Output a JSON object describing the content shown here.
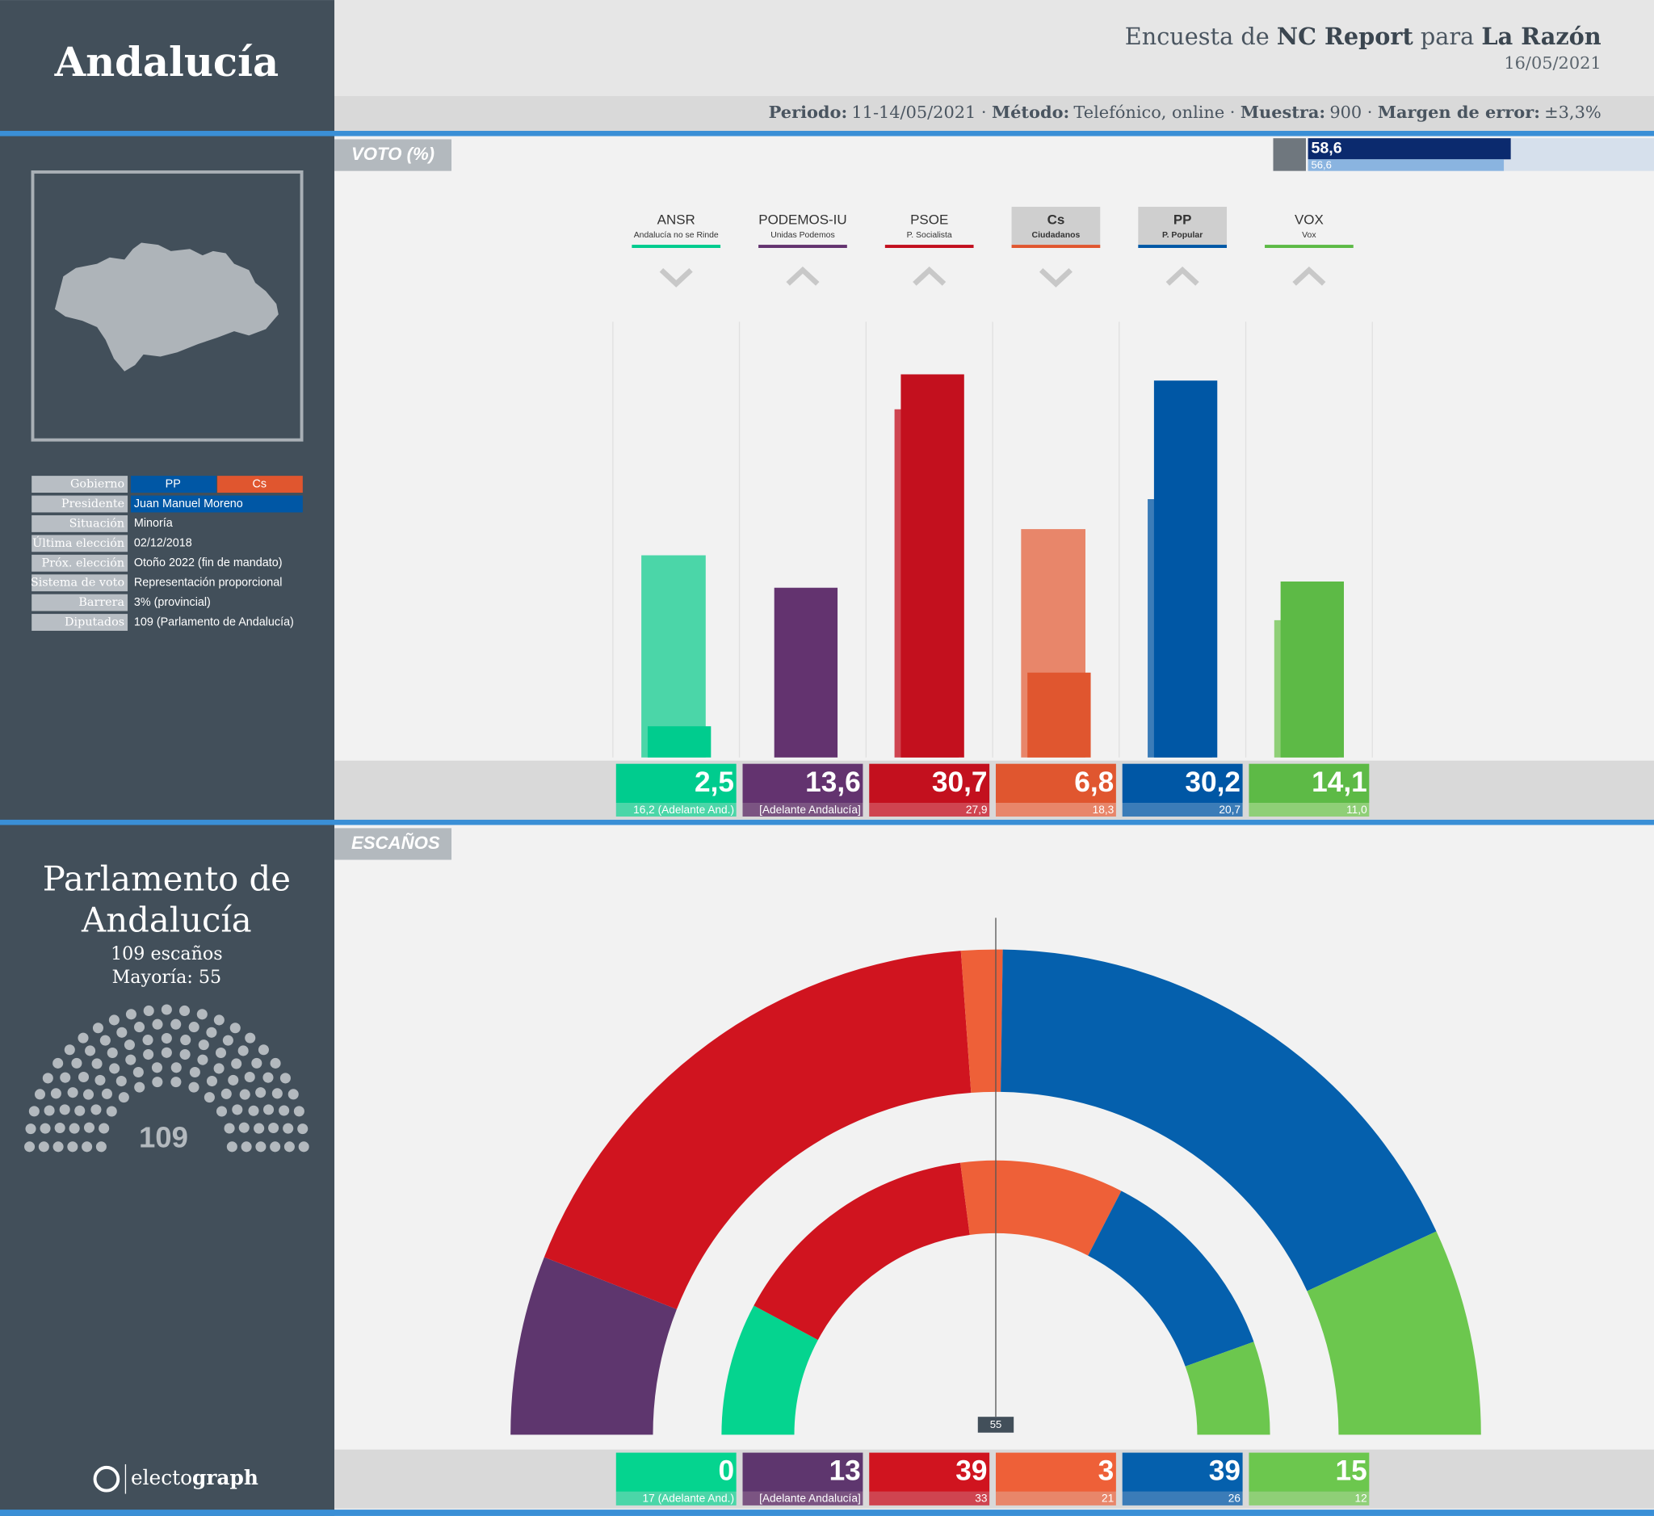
{
  "header": {
    "region": "Andalucía",
    "title_parts": [
      "Encuesta de",
      "NC Report",
      "para",
      "La Razón"
    ],
    "date": "16/05/2021",
    "separator": "·",
    "details": [
      {
        "label": "Periodo:",
        "value": "11-14/05/2021"
      },
      {
        "label": "Método:",
        "value": "Telefónico, online"
      },
      {
        "label": "Muestra:",
        "value": "900"
      },
      {
        "label": "Margen de error:",
        "value": "±3,3%"
      }
    ]
  },
  "sidebar": {
    "info": [
      {
        "label": "Gobierno",
        "value": [
          "PP",
          "Cs"
        ],
        "color": [
          "#0057a5",
          "#e0562f"
        ]
      },
      {
        "label": "Presidente",
        "value": "Juan Manuel Moreno",
        "color": "#0057a5"
      },
      {
        "label": "Situación",
        "value": "Minoría"
      },
      {
        "label": "Última elección",
        "value": "02/12/2018"
      },
      {
        "label": "Próx. elección",
        "value": "Otoño 2022 (fin de mandato)"
      },
      {
        "label": "Sistema de voto",
        "value": "Representación proporcional"
      },
      {
        "label": "Barrera",
        "value": "3% (provincial)"
      },
      {
        "label": "Diputados",
        "value": "109 (Parlamento de Andalucía)"
      }
    ],
    "parliament": {
      "name_lines": [
        "Parlamento de",
        "Andalucía"
      ],
      "seats_text": "109 escaños",
      "majority_text": "Mayoría: 55",
      "total": 109
    },
    "brand": [
      "electo",
      "graph"
    ]
  },
  "chart_data": [
    {
      "type": "bar",
      "section_label": "VOTO (%)",
      "turnout": {
        "values": [
          58.6,
          56.6
        ],
        "value_labels": [
          "58,6",
          "56,6"
        ],
        "colors": [
          "#0b2a6e",
          "#8ab4e0"
        ]
      },
      "categories": [
        "ANSR",
        "PODEMOS-IU",
        "PSOE",
        "Cs",
        "PP",
        "VOX"
      ],
      "subtitles": [
        "Andalucía no se Rinde",
        "Unidas Podemos",
        "P. Socialista",
        "Ciudadanos",
        "P. Popular",
        "Vox"
      ],
      "highlight": [
        false,
        false,
        false,
        true,
        true,
        false
      ],
      "trend": [
        "down",
        "up",
        "up",
        "down",
        "up",
        "up"
      ],
      "colors": [
        "#00cc8e",
        "#63336f",
        "#c3101e",
        "#e0562f",
        "#0057a5",
        "#5dba46"
      ],
      "previous_colors": [
        "#4bd6a8",
        "#7b5482",
        "#cf4450",
        "#e8866a",
        "#3b7cb8",
        "#8fcf77"
      ],
      "series": [
        {
          "values": [
            2.5,
            13.6,
            30.7,
            6.8,
            30.2,
            14.1
          ],
          "value_labels": [
            "2,5",
            "13,6",
            "30,7",
            "6,8",
            "30,2",
            "14,1"
          ]
        },
        {
          "values": [
            16.2,
            null,
            27.9,
            18.3,
            20.7,
            11.0
          ],
          "value_labels": [
            "16,2 (Adelante And.)",
            "[Adelante Andalucía]",
            "27,9",
            "18,3",
            "20,7",
            "11,0"
          ]
        }
      ]
    },
    {
      "type": "hemicycle",
      "section_label": "ESCAÑOS",
      "majority": 55,
      "colors": [
        "#05d48f",
        "#5e366e",
        "#d0141f",
        "#ee6038",
        "#0560ad",
        "#6cc74e"
      ],
      "previous_colors": [
        "#4bd6a8",
        "#7b5482",
        "#cf4450",
        "#e8866a",
        "#3b7cb8",
        "#8fcf77"
      ],
      "series": [
        {
          "values": [
            0,
            13,
            39,
            3,
            39,
            15
          ]
        },
        {
          "values": [
            17,
            null,
            33,
            21,
            26,
            12
          ],
          "value_labels": [
            "17 (Adelante And.)",
            "[Adelante Andalucía]",
            "33",
            "21",
            "26",
            "12"
          ]
        }
      ]
    }
  ]
}
